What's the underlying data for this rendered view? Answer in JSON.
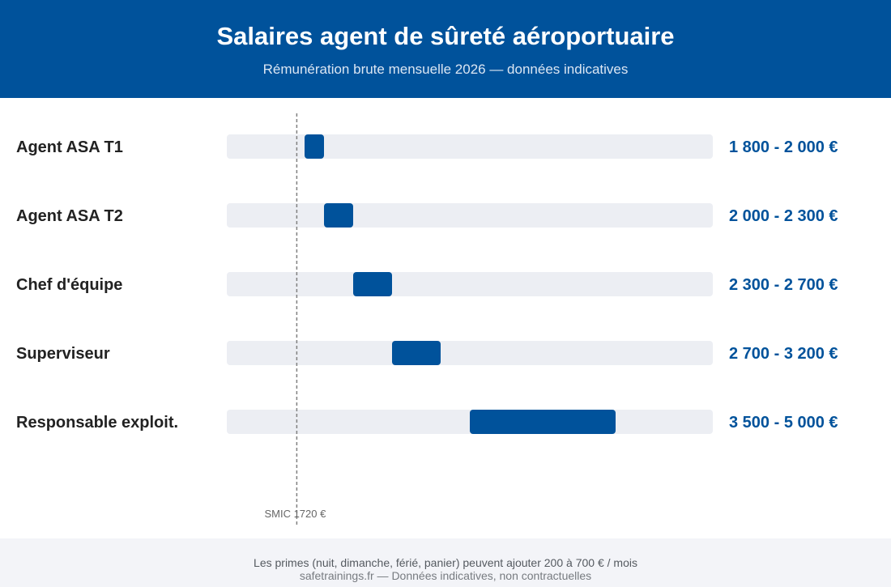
{
  "header": {
    "title": "Salaires agent de sûreté aéroportuaire",
    "subtitle": "Rémunération brute mensuelle 2026 — données indicatives"
  },
  "chart_data": {
    "type": "bar",
    "orientation": "horizontal-range",
    "categories": [
      "Agent ASA T1",
      "Agent ASA T2",
      "Chef d'équipe",
      "Superviseur",
      "Responsable exploit."
    ],
    "ranges": [
      [
        1800,
        2000
      ],
      [
        2000,
        2300
      ],
      [
        2300,
        2700
      ],
      [
        2700,
        3200
      ],
      [
        3500,
        5000
      ]
    ],
    "range_labels": [
      "1 800 - 2 000 €",
      "2 000 - 2 300 €",
      "2 300 - 2 700 €",
      "2 700 - 3 200 €",
      "3 500 - 5 000 €"
    ],
    "xlim": [
      1000,
      6000
    ],
    "reference_line": {
      "value": 1720,
      "label": "SMIC 1720 €"
    },
    "colors": {
      "bar": "#00529b",
      "track": "#eceef3",
      "label": "#00529b",
      "reference": "#808080"
    },
    "grid": false
  },
  "footer": {
    "note": "Les primes (nuit, dimanche, férié, panier) peuvent ajouter 200 à 700 € / mois",
    "source": "safetrainings.fr — Données indicatives, non contractuelles"
  }
}
